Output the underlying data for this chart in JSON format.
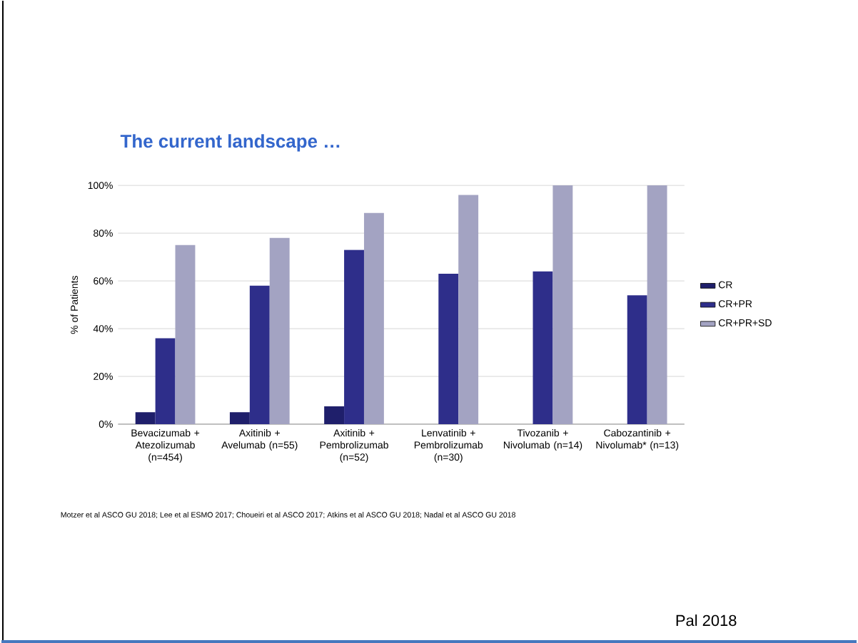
{
  "chart_data": {
    "type": "bar",
    "title": "The current landscape …",
    "categories": [
      "Bevacizumab + Atezolizumab (n=454)",
      "Axitinib + Avelumab (n=55)",
      "Axitinib + Pembrolizumab (n=52)",
      "Lenvatinib + Pembrolizumab (n=30)",
      "Tivozanib + Nivolumab (n=14)",
      "Cabozantinib + Nivolumab* (n=13)"
    ],
    "series": [
      {
        "name": "CR",
        "color": "#1f1f6b",
        "values": [
          5,
          5,
          7.5,
          null,
          null,
          null
        ]
      },
      {
        "name": "CR+PR",
        "color": "#2e2e8a",
        "values": [
          36,
          58,
          73,
          63,
          64,
          54
        ]
      },
      {
        "name": "CR+PR+SD",
        "color": "#a3a3c2",
        "values": [
          75,
          78,
          88.5,
          96,
          100,
          100
        ]
      }
    ],
    "ylabel": "% of Patients",
    "ylim": [
      0,
      100
    ],
    "yticks": [
      {
        "value": 0,
        "label": "0%"
      },
      {
        "value": 20,
        "label": "20%"
      },
      {
        "value": 40,
        "label": "40%"
      },
      {
        "value": 60,
        "label": "60%"
      },
      {
        "value": 80,
        "label": "80%"
      },
      {
        "value": 100,
        "label": "100%"
      }
    ],
    "grid": "y",
    "legend": "right",
    "annotations": [
      "Motzer et al ASCO GU 2018; Lee et al ESMO 2017; Choueiri et al ASCO 2017; Atkins et al ASCO GU 2018; Nadal et al ASCO GU 2018",
      "Pal 2018"
    ]
  }
}
